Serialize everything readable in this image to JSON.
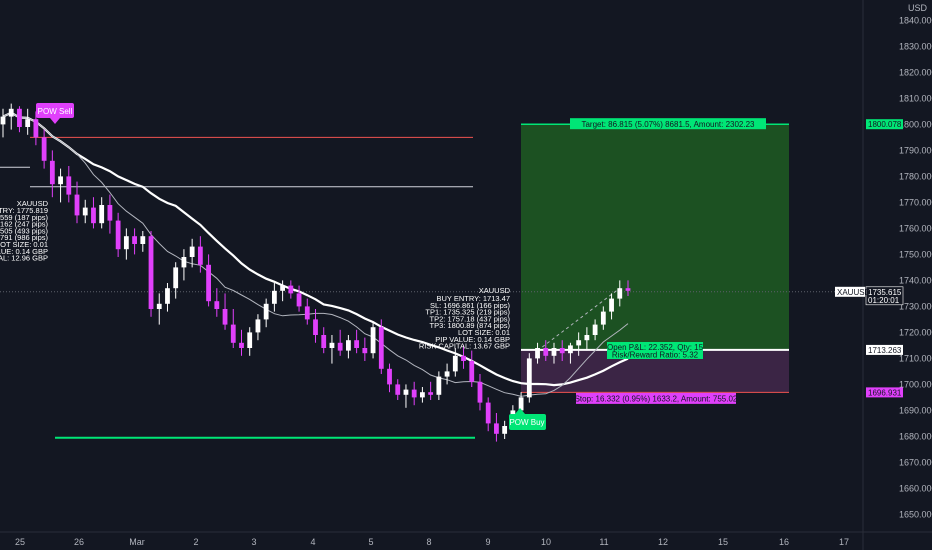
{
  "chart_data": {
    "type": "candlestick",
    "symbol": "XAUUSD",
    "currency": "USD",
    "y_ticks": [
      1650,
      1660,
      1670,
      1680,
      1690,
      1700,
      1710,
      1720,
      1730,
      1740,
      1750,
      1760,
      1770,
      1780,
      1790,
      1800,
      1810,
      1820,
      1830,
      1840
    ],
    "y_tick_labels": [
      "1650.000",
      "1660.000",
      "1670.000",
      "1680.000",
      "1690.000",
      "1700.000",
      "1710.000",
      "1720.000",
      "1730.000",
      "1740.000",
      "1750.000",
      "1760.000",
      "1770.000",
      "1780.000",
      "1790.000",
      "1800.000",
      "1810.000",
      "1820.000",
      "1830.000",
      "1840.000"
    ],
    "ylim": [
      1644,
      1847
    ],
    "x_labels": [
      "25",
      "26",
      "Mar",
      "2",
      "3",
      "4",
      "5",
      "8",
      "9",
      "10",
      "11",
      "12",
      "15",
      "16",
      "17"
    ],
    "price_tags": {
      "last": "1735.615",
      "countdown": "01:20:01",
      "target": "1800.078",
      "entry": "1713.263",
      "stop": "1696.931"
    },
    "colors": {
      "background": "#131722",
      "bull": "#ffffff",
      "bear": "#e040fb",
      "target_zone": "#2c9b2c",
      "stop_zone": "#7b1fa2",
      "green_label": "#00e676",
      "magenta_label": "#e040fb"
    },
    "annotations": {
      "pow_sell": "POW Sell",
      "pow_buy": "POW Buy",
      "target_text": "Target: 86.815 (5.07%) 8681.5, Amount: 2302.23",
      "stop_text": "Stop: 16.332 (0.95%) 1633.2, Amount: 755.02",
      "open_pl_text": "Open P&L: 22.352, Qty: 15",
      "rr_text": "Risk/Reward Ratio: 5.32"
    },
    "info_box_right": {
      "title": "XAUUSD",
      "lines": [
        "BUY ENTRY: 1713.47",
        "SL: 1696.861 (166 pips)",
        "TP1: 1735.325 (219 pips)",
        "TP2: 1757.18 (437 pips)",
        "TP3: 1800.89 (874 pips)",
        "LOT SIZE: 0.01",
        "PIP VALUE: 0.14 GBP",
        "RISK CAPITAL: 13.67 GBP"
      ]
    },
    "info_box_left": {
      "title": "XAUUSD",
      "lines": [
        "ENTRY: 1775.819",
        "94.559 (187 pips)",
        "31.162 (247 pips)",
        "36.505 (493 pips)",
        "77.791 (986 pips)",
        "LOT SIZE: 0.01",
        "VALUE: 0.14 GBP",
        "PITAL: 12.96 GBP"
      ]
    },
    "levels": {
      "red_line": 1795,
      "sell_tp1": 1776,
      "sell_entry_short": 1783.5,
      "green_support": 1679.5
    },
    "candles": [
      [
        1800,
        1806,
        1795,
        1803
      ],
      [
        1803,
        1808,
        1798,
        1806
      ],
      [
        1806,
        1807,
        1797,
        1799
      ],
      [
        1799,
        1806,
        1796,
        1802
      ],
      [
        1802,
        1805,
        1792,
        1795
      ],
      [
        1795,
        1798,
        1783,
        1786
      ],
      [
        1786,
        1790,
        1772,
        1777
      ],
      [
        1777,
        1783,
        1770,
        1780
      ],
      [
        1780,
        1784,
        1770,
        1773
      ],
      [
        1773,
        1778,
        1762,
        1765
      ],
      [
        1765,
        1771,
        1762,
        1768
      ],
      [
        1768,
        1772,
        1760,
        1762
      ],
      [
        1762,
        1772,
        1760,
        1769
      ],
      [
        1769,
        1773,
        1758,
        1763
      ],
      [
        1763,
        1766,
        1749,
        1752
      ],
      [
        1752,
        1760,
        1748,
        1757
      ],
      [
        1757,
        1760,
        1750,
        1754
      ],
      [
        1754,
        1759,
        1751,
        1757
      ],
      [
        1757,
        1759,
        1726,
        1729
      ],
      [
        1729,
        1735,
        1723,
        1731
      ],
      [
        1731,
        1739,
        1728,
        1737
      ],
      [
        1737,
        1747,
        1733,
        1745
      ],
      [
        1745,
        1752,
        1740,
        1749
      ],
      [
        1749,
        1756,
        1745,
        1753
      ],
      [
        1753,
        1757,
        1743,
        1746
      ],
      [
        1746,
        1750,
        1730,
        1732
      ],
      [
        1732,
        1737,
        1726,
        1729
      ],
      [
        1729,
        1735,
        1721,
        1723
      ],
      [
        1723,
        1729,
        1714,
        1716
      ],
      [
        1716,
        1721,
        1711,
        1714
      ],
      [
        1714,
        1722,
        1711,
        1720
      ],
      [
        1720,
        1727,
        1717,
        1725
      ],
      [
        1725,
        1733,
        1722,
        1731
      ],
      [
        1731,
        1739,
        1728,
        1736
      ],
      [
        1736,
        1740,
        1732,
        1738
      ],
      [
        1738,
        1740,
        1733,
        1735
      ],
      [
        1735,
        1738,
        1728,
        1730
      ],
      [
        1730,
        1733,
        1723,
        1725
      ],
      [
        1725,
        1729,
        1716,
        1719
      ],
      [
        1719,
        1722,
        1712,
        1714
      ],
      [
        1714,
        1719,
        1708,
        1716
      ],
      [
        1716,
        1721,
        1711,
        1713
      ],
      [
        1713,
        1719,
        1710,
        1717
      ],
      [
        1717,
        1721,
        1712,
        1714
      ],
      [
        1714,
        1718,
        1709,
        1712
      ],
      [
        1712,
        1724,
        1710,
        1722
      ],
      [
        1722,
        1725,
        1704,
        1706
      ],
      [
        1706,
        1708,
        1697,
        1700
      ],
      [
        1700,
        1702,
        1694,
        1696
      ],
      [
        1696,
        1700,
        1691,
        1698
      ],
      [
        1698,
        1701,
        1692,
        1695
      ],
      [
        1695,
        1699,
        1693,
        1697
      ],
      [
        1697,
        1701,
        1694,
        1696
      ],
      [
        1696,
        1705,
        1694,
        1703
      ],
      [
        1703,
        1708,
        1700,
        1705
      ],
      [
        1705,
        1714,
        1703,
        1711
      ],
      [
        1711,
        1715,
        1706,
        1709
      ],
      [
        1709,
        1713,
        1699,
        1701
      ],
      [
        1701,
        1704,
        1690,
        1693
      ],
      [
        1693,
        1695,
        1682,
        1685
      ],
      [
        1685,
        1689,
        1678,
        1681
      ],
      [
        1681,
        1686,
        1679,
        1684
      ],
      [
        1684,
        1692,
        1683,
        1690
      ],
      [
        1690,
        1697,
        1688,
        1695
      ],
      [
        1695,
        1712,
        1693,
        1710
      ],
      [
        1710,
        1716,
        1708,
        1714
      ],
      [
        1714,
        1717,
        1709,
        1711
      ],
      [
        1711,
        1716,
        1708,
        1714
      ],
      [
        1714,
        1717,
        1709,
        1712
      ],
      [
        1712,
        1716,
        1708,
        1715
      ],
      [
        1715,
        1720,
        1711,
        1717
      ],
      [
        1717,
        1722,
        1713,
        1719
      ],
      [
        1719,
        1725,
        1717,
        1723
      ],
      [
        1723,
        1730,
        1721,
        1728
      ],
      [
        1728,
        1735,
        1725,
        1733
      ],
      [
        1733,
        1740,
        1730,
        1737
      ],
      [
        1737,
        1740,
        1734,
        1736
      ]
    ]
  }
}
